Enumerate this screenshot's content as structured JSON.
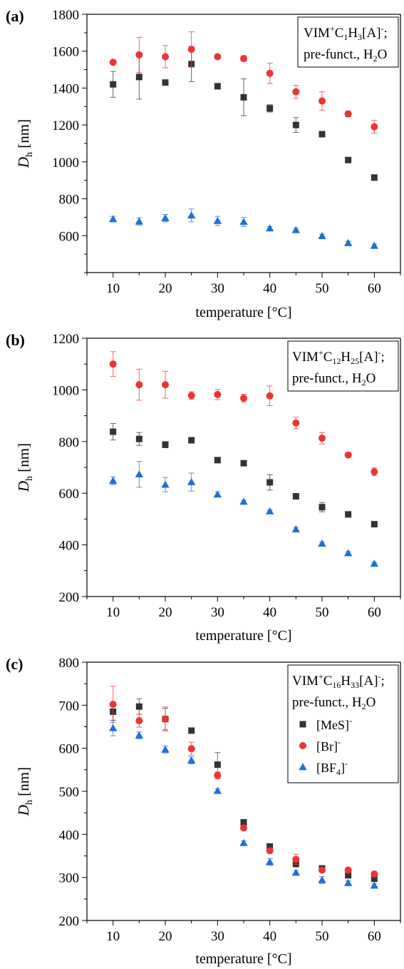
{
  "figure": {
    "series_styles": [
      {
        "key": "MeS",
        "marker": "square",
        "color": "#333333"
      },
      {
        "key": "Br",
        "marker": "circle",
        "color": "#ee3333"
      },
      {
        "key": "BF4",
        "marker": "triangle",
        "color": "#1f6fd6"
      }
    ]
  },
  "chart_data": [
    {
      "type": "scatter",
      "panel_label": "(a)",
      "xlabel": "temperature [°C]",
      "ylabel": "D",
      "ylabel_sub": "h",
      "ylabel_unit": " [nm]",
      "xlim": [
        5,
        65
      ],
      "ylim": [
        400,
        1800
      ],
      "xticks": [
        10,
        20,
        30,
        40,
        50,
        60
      ],
      "yticks": [
        600,
        800,
        1000,
        1200,
        1400,
        1600,
        1800
      ],
      "legend": {
        "position": "top-right",
        "line1": {
          "a": "VIM",
          "b": "+",
          "c": "C",
          "d": "1",
          "e": "H",
          "f": "3",
          "g": "[A]",
          "h": "-",
          "i": ";"
        },
        "line2": {
          "a": "pre-funct., H",
          "b": "2",
          "c": "O"
        }
      },
      "x": [
        10,
        15,
        20,
        25,
        30,
        35,
        40,
        45,
        50,
        55,
        60
      ],
      "series": [
        {
          "key": "MeS",
          "values": [
            1420,
            1460,
            1430,
            1530,
            1410,
            1350,
            1290,
            1200,
            1150,
            1010,
            915
          ],
          "errors": [
            70,
            120,
            10,
            95,
            10,
            100,
            20,
            40,
            15,
            10,
            10
          ]
        },
        {
          "key": "Br",
          "values": [
            1540,
            1580,
            1570,
            1610,
            1570,
            1560,
            1480,
            1380,
            1330,
            1260,
            1190
          ],
          "errors": [
            10,
            95,
            60,
            95,
            10,
            15,
            55,
            35,
            50,
            15,
            35
          ]
        },
        {
          "key": "BF4",
          "values": [
            690,
            677,
            695,
            710,
            680,
            675,
            640,
            630,
            598,
            560,
            545
          ],
          "errors": [
            15,
            20,
            20,
            35,
            25,
            25,
            10,
            10,
            10,
            10,
            10
          ]
        }
      ]
    },
    {
      "type": "scatter",
      "panel_label": "(b)",
      "xlabel": "temperature [°C]",
      "ylabel": "D",
      "ylabel_sub": "h",
      "ylabel_unit": " [nm]",
      "xlim": [
        5,
        65
      ],
      "ylim": [
        200,
        1200
      ],
      "xticks": [
        10,
        20,
        30,
        40,
        50,
        60
      ],
      "yticks": [
        200,
        400,
        600,
        800,
        1000,
        1200
      ],
      "legend": {
        "position": "top-right",
        "line1": {
          "a": "VIM",
          "b": "+",
          "c": "C",
          "d": "12",
          "e": "H",
          "f": "25",
          "g": "[A]",
          "h": "-",
          "i": ";"
        },
        "line2": {
          "a": "pre-funct., H",
          "b": "2",
          "c": "O"
        }
      },
      "x": [
        10,
        15,
        20,
        25,
        30,
        35,
        40,
        45,
        50,
        55,
        60
      ],
      "series": [
        {
          "key": "MeS",
          "values": [
            838,
            810,
            788,
            805,
            728,
            716,
            642,
            588,
            546,
            518,
            480
          ],
          "errors": [
            32,
            25,
            12,
            8,
            10,
            5,
            30,
            5,
            18,
            5,
            5
          ]
        },
        {
          "key": "Br",
          "values": [
            1100,
            1020,
            1020,
            978,
            982,
            968,
            977,
            872,
            813,
            748,
            683
          ],
          "errors": [
            48,
            60,
            52,
            15,
            20,
            15,
            38,
            22,
            22,
            8,
            15
          ]
        },
        {
          "key": "BF4",
          "values": [
            648,
            673,
            633,
            643,
            595,
            567,
            530,
            460,
            405,
            368,
            327
          ],
          "errors": [
            15,
            50,
            28,
            35,
            10,
            5,
            5,
            8,
            5,
            5,
            5
          ]
        }
      ]
    },
    {
      "type": "scatter",
      "panel_label": "(c)",
      "xlabel": "temperature [°C]",
      "ylabel": "D",
      "ylabel_sub": "h",
      "ylabel_unit": " [nm]",
      "xlim": [
        5,
        65
      ],
      "ylim": [
        200,
        800
      ],
      "xticks": [
        10,
        20,
        30,
        40,
        50,
        60
      ],
      "yticks": [
        200,
        300,
        400,
        500,
        600,
        700,
        800
      ],
      "legend": {
        "position": "top-right",
        "line1": {
          "a": "VIM",
          "b": "+",
          "c": "C",
          "d": "16",
          "e": "H",
          "f": "33",
          "g": "[A]",
          "h": "-",
          "i": ";"
        },
        "line2": {
          "a": "pre-funct., H",
          "b": "2",
          "c": "O"
        },
        "entries": [
          {
            "key": "MeS",
            "a": "[MeS]",
            "b": "-",
            "c": ""
          },
          {
            "key": "Br",
            "a": "[Br]",
            "b": "-",
            "c": ""
          },
          {
            "key": "BF4",
            "a": "[BF",
            "b": "4",
            "c": "]",
            "d": "-"
          }
        ]
      },
      "x": [
        10,
        15,
        20,
        25,
        30,
        35,
        40,
        45,
        50,
        55,
        60
      ],
      "series": [
        {
          "key": "MeS",
          "values": [
            685,
            697,
            668,
            641,
            562,
            428,
            372,
            332,
            321,
            305,
            297
          ],
          "errors": [
            20,
            18,
            25,
            5,
            28,
            5,
            5,
            8,
            5,
            5,
            5
          ]
        },
        {
          "key": "Br",
          "values": [
            702,
            664,
            668,
            599,
            537,
            415,
            362,
            342,
            317,
            317,
            308
          ],
          "errors": [
            42,
            15,
            28,
            15,
            8,
            5,
            5,
            12,
            5,
            5,
            5
          ]
        },
        {
          "key": "BF4",
          "values": [
            647,
            630,
            597,
            572,
            501,
            380,
            336,
            311,
            294,
            287,
            281
          ],
          "errors": [
            18,
            8,
            8,
            8,
            5,
            5,
            8,
            5,
            8,
            5,
            5
          ]
        }
      ]
    }
  ]
}
